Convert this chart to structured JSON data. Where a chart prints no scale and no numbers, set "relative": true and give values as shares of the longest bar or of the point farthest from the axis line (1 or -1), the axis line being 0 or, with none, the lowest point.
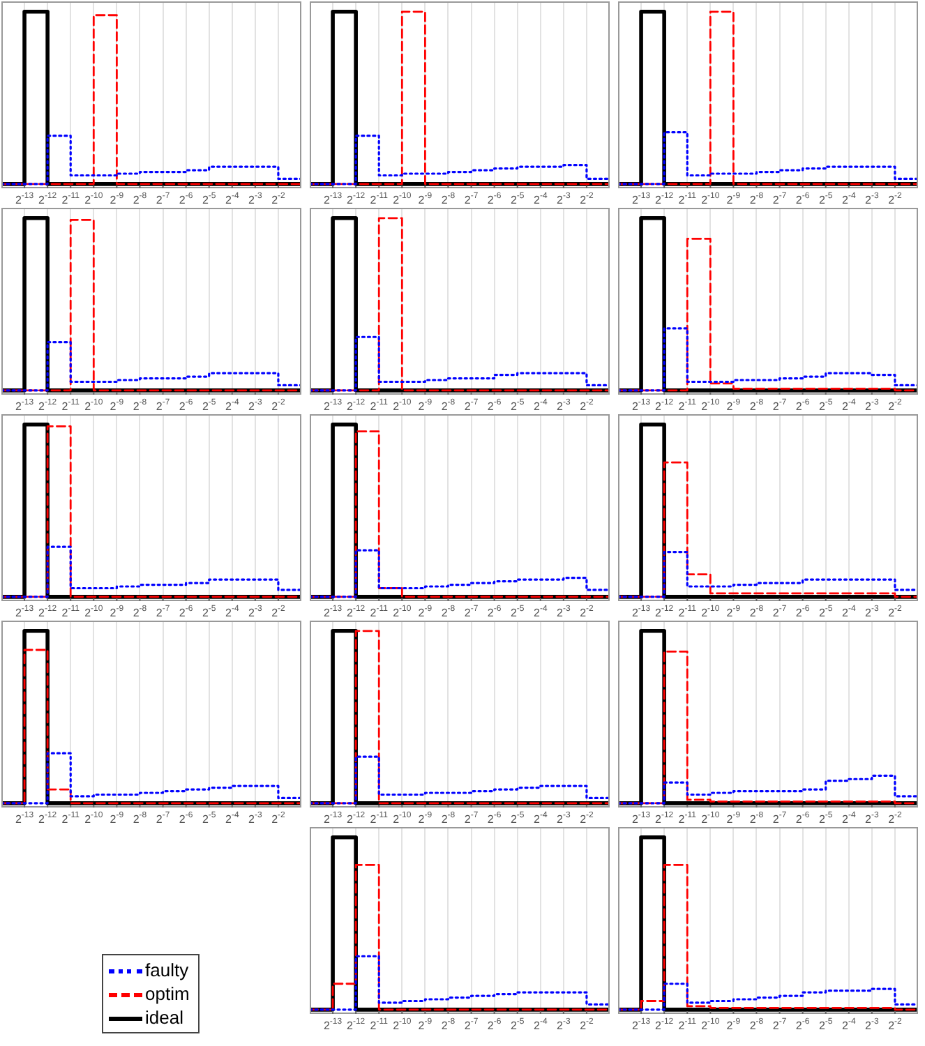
{
  "chart_data": [
    {
      "type": "step",
      "relative": true,
      "log": "x",
      "grid": "x",
      "x": [
        6.103515625e-05,
        0.0001220703125,
        0.000244140625,
        0.00048828125,
        0.0009765625,
        0.001953125,
        0.00390625,
        0.0078125,
        0.015625,
        0.03125,
        0.0625,
        0.125,
        0.25,
        0.5
      ],
      "xlim": [
        6.103515625e-05,
        0.5
      ],
      "xticks": [
        {
          "value": 0.0001220703125,
          "label": "2$^{-13}$"
        },
        {
          "value": 0.000244140625,
          "label": "2$^{-12}$"
        },
        {
          "value": 0.00048828125,
          "label": "2$^{-11}$"
        },
        {
          "value": 0.0009765625,
          "label": "2$^{-10}$"
        },
        {
          "value": 0.001953125,
          "label": "2$^{-9}$"
        },
        {
          "value": 0.00390625,
          "label": "2$^{-8}$"
        },
        {
          "value": 0.0078125,
          "label": "2$^{-7}$"
        },
        {
          "value": 0.015625,
          "label": "2$^{-6}$"
        },
        {
          "value": 0.03125,
          "label": "2$^{-5}$"
        },
        {
          "value": 0.0625,
          "label": "2$^{-4}$"
        },
        {
          "value": 0.125,
          "label": "2$^{-3}$"
        },
        {
          "value": 0.25,
          "label": "2$^{-2}$"
        }
      ],
      "series": [
        {
          "color": "#0000ff",
          "line_style": "dotted",
          "values": [
            0,
            0,
            0.28,
            0.05,
            0.05,
            0.06,
            0.07,
            0.07,
            0.08,
            0.1,
            0.1,
            0.1,
            0.03,
            0.03
          ]
        },
        {
          "color": "#ff0000",
          "line_style": "dashed",
          "values": [
            0,
            0,
            0,
            0,
            0.98,
            0,
            0,
            0,
            0,
            0,
            0,
            0,
            0,
            0
          ]
        },
        {
          "color": "#000000",
          "line_style": "solid",
          "values": [
            0,
            1,
            0,
            0,
            0,
            0,
            0,
            0,
            0,
            0,
            0,
            0,
            0,
            0
          ]
        }
      ]
    },
    {
      "type": "step",
      "relative": true,
      "log": "x",
      "grid": "x",
      "x": [
        6.103515625e-05,
        0.0001220703125,
        0.000244140625,
        0.00048828125,
        0.0009765625,
        0.001953125,
        0.00390625,
        0.0078125,
        0.015625,
        0.03125,
        0.0625,
        0.125,
        0.25,
        0.5
      ],
      "xlim": [
        6.103515625e-05,
        0.5
      ],
      "xticks": [
        {
          "value": 0.0001220703125,
          "label": "2$^{-13}$"
        },
        {
          "value": 0.000244140625,
          "label": "2$^{-12}$"
        },
        {
          "value": 0.00048828125,
          "label": "2$^{-11}$"
        },
        {
          "value": 0.0009765625,
          "label": "2$^{-10}$"
        },
        {
          "value": 0.001953125,
          "label": "2$^{-9}$"
        },
        {
          "value": 0.00390625,
          "label": "2$^{-8}$"
        },
        {
          "value": 0.0078125,
          "label": "2$^{-7}$"
        },
        {
          "value": 0.015625,
          "label": "2$^{-6}$"
        },
        {
          "value": 0.03125,
          "label": "2$^{-5}$"
        },
        {
          "value": 0.0625,
          "label": "2$^{-4}$"
        },
        {
          "value": 0.125,
          "label": "2$^{-3}$"
        },
        {
          "value": 0.25,
          "label": "2$^{-2}$"
        }
      ],
      "series": [
        {
          "color": "#0000ff",
          "line_style": "dotted",
          "values": [
            0,
            0,
            0.28,
            0.05,
            0.06,
            0.06,
            0.07,
            0.08,
            0.09,
            0.1,
            0.1,
            0.11,
            0.03,
            0.03
          ]
        },
        {
          "color": "#ff0000",
          "line_style": "dashed",
          "values": [
            0,
            0,
            0,
            0,
            1,
            0,
            0,
            0,
            0,
            0,
            0,
            0,
            0,
            0
          ]
        },
        {
          "color": "#000000",
          "line_style": "solid",
          "values": [
            0,
            1,
            0,
            0,
            0,
            0,
            0,
            0,
            0,
            0,
            0,
            0,
            0,
            0
          ]
        }
      ]
    },
    {
      "type": "step",
      "relative": true,
      "log": "x",
      "grid": "x",
      "x": [
        6.103515625e-05,
        0.0001220703125,
        0.000244140625,
        0.00048828125,
        0.0009765625,
        0.001953125,
        0.00390625,
        0.0078125,
        0.015625,
        0.03125,
        0.0625,
        0.125,
        0.25,
        0.5
      ],
      "xlim": [
        6.103515625e-05,
        0.5
      ],
      "xticks": [
        {
          "value": 0.0001220703125,
          "label": "2$^{-13}$"
        },
        {
          "value": 0.000244140625,
          "label": "2$^{-12}$"
        },
        {
          "value": 0.00048828125,
          "label": "2$^{-11}$"
        },
        {
          "value": 0.0009765625,
          "label": "2$^{-10}$"
        },
        {
          "value": 0.001953125,
          "label": "2$^{-9}$"
        },
        {
          "value": 0.00390625,
          "label": "2$^{-8}$"
        },
        {
          "value": 0.0078125,
          "label": "2$^{-7}$"
        },
        {
          "value": 0.015625,
          "label": "2$^{-6}$"
        },
        {
          "value": 0.03125,
          "label": "2$^{-5}$"
        },
        {
          "value": 0.0625,
          "label": "2$^{-4}$"
        },
        {
          "value": 0.125,
          "label": "2$^{-3}$"
        },
        {
          "value": 0.25,
          "label": "2$^{-2}$"
        }
      ],
      "series": [
        {
          "color": "#0000ff",
          "line_style": "dotted",
          "values": [
            0,
            0,
            0.3,
            0.05,
            0.06,
            0.06,
            0.07,
            0.08,
            0.09,
            0.1,
            0.1,
            0.1,
            0.03,
            0.03
          ]
        },
        {
          "color": "#ff0000",
          "line_style": "dashed",
          "values": [
            0,
            0,
            0,
            0,
            1,
            0,
            0,
            0,
            0,
            0,
            0,
            0,
            0,
            0
          ]
        },
        {
          "color": "#000000",
          "line_style": "solid",
          "values": [
            0,
            1,
            0,
            0,
            0,
            0,
            0,
            0,
            0,
            0,
            0,
            0,
            0,
            0
          ]
        }
      ]
    },
    {
      "type": "step",
      "relative": true,
      "log": "x",
      "grid": "x",
      "x": [
        6.103515625e-05,
        0.0001220703125,
        0.000244140625,
        0.00048828125,
        0.0009765625,
        0.001953125,
        0.00390625,
        0.0078125,
        0.015625,
        0.03125,
        0.0625,
        0.125,
        0.25,
        0.5
      ],
      "xlim": [
        6.103515625e-05,
        0.5
      ],
      "xticks": [
        {
          "value": 0.0001220703125,
          "label": "2$^{-13}$"
        },
        {
          "value": 0.000244140625,
          "label": "2$^{-12}$"
        },
        {
          "value": 0.00048828125,
          "label": "2$^{-11}$"
        },
        {
          "value": 0.0009765625,
          "label": "2$^{-10}$"
        },
        {
          "value": 0.001953125,
          "label": "2$^{-9}$"
        },
        {
          "value": 0.00390625,
          "label": "2$^{-8}$"
        },
        {
          "value": 0.0078125,
          "label": "2$^{-7}$"
        },
        {
          "value": 0.015625,
          "label": "2$^{-6}$"
        },
        {
          "value": 0.03125,
          "label": "2$^{-5}$"
        },
        {
          "value": 0.0625,
          "label": "2$^{-4}$"
        },
        {
          "value": 0.125,
          "label": "2$^{-3}$"
        },
        {
          "value": 0.25,
          "label": "2$^{-2}$"
        }
      ],
      "series": [
        {
          "color": "#0000ff",
          "line_style": "dotted",
          "values": [
            0,
            0,
            0.28,
            0.05,
            0.05,
            0.06,
            0.07,
            0.07,
            0.08,
            0.1,
            0.1,
            0.1,
            0.03,
            0.03
          ]
        },
        {
          "color": "#ff0000",
          "line_style": "dashed",
          "values": [
            0,
            0,
            0,
            0.99,
            0,
            0,
            0,
            0,
            0,
            0,
            0,
            0,
            0,
            0
          ]
        },
        {
          "color": "#000000",
          "line_style": "solid",
          "values": [
            0,
            1,
            0,
            0,
            0,
            0,
            0,
            0,
            0,
            0,
            0,
            0,
            0,
            0
          ]
        }
      ]
    },
    {
      "type": "step",
      "relative": true,
      "log": "x",
      "grid": "x",
      "x": [
        6.103515625e-05,
        0.0001220703125,
        0.000244140625,
        0.00048828125,
        0.0009765625,
        0.001953125,
        0.00390625,
        0.0078125,
        0.015625,
        0.03125,
        0.0625,
        0.125,
        0.25,
        0.5
      ],
      "xlim": [
        6.103515625e-05,
        0.5
      ],
      "xticks": [
        {
          "value": 0.0001220703125,
          "label": "2$^{-13}$"
        },
        {
          "value": 0.000244140625,
          "label": "2$^{-12}$"
        },
        {
          "value": 0.00048828125,
          "label": "2$^{-11}$"
        },
        {
          "value": 0.0009765625,
          "label": "2$^{-10}$"
        },
        {
          "value": 0.001953125,
          "label": "2$^{-9}$"
        },
        {
          "value": 0.00390625,
          "label": "2$^{-8}$"
        },
        {
          "value": 0.0078125,
          "label": "2$^{-7}$"
        },
        {
          "value": 0.015625,
          "label": "2$^{-6}$"
        },
        {
          "value": 0.03125,
          "label": "2$^{-5}$"
        },
        {
          "value": 0.0625,
          "label": "2$^{-4}$"
        },
        {
          "value": 0.125,
          "label": "2$^{-3}$"
        },
        {
          "value": 0.25,
          "label": "2$^{-2}$"
        }
      ],
      "series": [
        {
          "color": "#0000ff",
          "line_style": "dotted",
          "values": [
            0,
            0,
            0.31,
            0.05,
            0.05,
            0.06,
            0.07,
            0.07,
            0.09,
            0.1,
            0.1,
            0.1,
            0.03,
            0.03
          ]
        },
        {
          "color": "#ff0000",
          "line_style": "dashed",
          "values": [
            0,
            0,
            0,
            1,
            0,
            0,
            0,
            0,
            0,
            0,
            0,
            0,
            0,
            0
          ]
        },
        {
          "color": "#000000",
          "line_style": "solid",
          "values": [
            0,
            1,
            0,
            0,
            0,
            0,
            0,
            0,
            0,
            0,
            0,
            0,
            0,
            0
          ]
        }
      ]
    },
    {
      "type": "step",
      "relative": true,
      "log": "x",
      "grid": "x",
      "x": [
        6.103515625e-05,
        0.0001220703125,
        0.000244140625,
        0.00048828125,
        0.0009765625,
        0.001953125,
        0.00390625,
        0.0078125,
        0.015625,
        0.03125,
        0.0625,
        0.125,
        0.25,
        0.5
      ],
      "xlim": [
        6.103515625e-05,
        0.5
      ],
      "xticks": [
        {
          "value": 0.0001220703125,
          "label": "2$^{-13}$"
        },
        {
          "value": 0.000244140625,
          "label": "2$^{-12}$"
        },
        {
          "value": 0.00048828125,
          "label": "2$^{-11}$"
        },
        {
          "value": 0.0009765625,
          "label": "2$^{-10}$"
        },
        {
          "value": 0.001953125,
          "label": "2$^{-9}$"
        },
        {
          "value": 0.00390625,
          "label": "2$^{-8}$"
        },
        {
          "value": 0.0078125,
          "label": "2$^{-7}$"
        },
        {
          "value": 0.015625,
          "label": "2$^{-6}$"
        },
        {
          "value": 0.03125,
          "label": "2$^{-5}$"
        },
        {
          "value": 0.0625,
          "label": "2$^{-4}$"
        },
        {
          "value": 0.125,
          "label": "2$^{-3}$"
        },
        {
          "value": 0.25,
          "label": "2$^{-2}$"
        }
      ],
      "series": [
        {
          "color": "#0000ff",
          "line_style": "dotted",
          "values": [
            0,
            0,
            0.36,
            0.05,
            0.05,
            0.06,
            0.06,
            0.07,
            0.08,
            0.1,
            0.1,
            0.09,
            0.03,
            0.03
          ]
        },
        {
          "color": "#ff0000",
          "line_style": "dashed",
          "values": [
            0,
            0,
            0,
            0.88,
            0.04,
            0.01,
            0.01,
            0.01,
            0.01,
            0.01,
            0.01,
            0.01,
            0,
            0
          ]
        },
        {
          "color": "#000000",
          "line_style": "solid",
          "values": [
            0,
            1,
            0,
            0,
            0,
            0,
            0,
            0,
            0,
            0,
            0,
            0,
            0,
            0
          ]
        }
      ]
    },
    {
      "type": "step",
      "relative": true,
      "log": "x",
      "grid": "x",
      "x": [
        6.103515625e-05,
        0.0001220703125,
        0.000244140625,
        0.00048828125,
        0.0009765625,
        0.001953125,
        0.00390625,
        0.0078125,
        0.015625,
        0.03125,
        0.0625,
        0.125,
        0.25,
        0.5
      ],
      "xlim": [
        6.103515625e-05,
        0.5
      ],
      "xticks": [
        {
          "value": 0.0001220703125,
          "label": "2$^{-13}$"
        },
        {
          "value": 0.000244140625,
          "label": "2$^{-12}$"
        },
        {
          "value": 0.00048828125,
          "label": "2$^{-11}$"
        },
        {
          "value": 0.0009765625,
          "label": "2$^{-10}$"
        },
        {
          "value": 0.001953125,
          "label": "2$^{-9}$"
        },
        {
          "value": 0.00390625,
          "label": "2$^{-8}$"
        },
        {
          "value": 0.0078125,
          "label": "2$^{-7}$"
        },
        {
          "value": 0.015625,
          "label": "2$^{-6}$"
        },
        {
          "value": 0.03125,
          "label": "2$^{-5}$"
        },
        {
          "value": 0.0625,
          "label": "2$^{-4}$"
        },
        {
          "value": 0.125,
          "label": "2$^{-3}$"
        },
        {
          "value": 0.25,
          "label": "2$^{-2}$"
        }
      ],
      "series": [
        {
          "color": "#0000ff",
          "line_style": "dotted",
          "values": [
            0,
            0,
            0.29,
            0.05,
            0.05,
            0.06,
            0.07,
            0.07,
            0.08,
            0.1,
            0.1,
            0.1,
            0.04,
            0.04
          ]
        },
        {
          "color": "#ff0000",
          "line_style": "dashed",
          "values": [
            0,
            0,
            0.99,
            0,
            0,
            0,
            0,
            0,
            0,
            0,
            0,
            0,
            0,
            0
          ]
        },
        {
          "color": "#000000",
          "line_style": "solid",
          "values": [
            0,
            1,
            0,
            0,
            0,
            0,
            0,
            0,
            0,
            0,
            0,
            0,
            0,
            0
          ]
        }
      ]
    },
    {
      "type": "step",
      "relative": true,
      "log": "x",
      "grid": "x",
      "x": [
        6.103515625e-05,
        0.0001220703125,
        0.000244140625,
        0.00048828125,
        0.0009765625,
        0.001953125,
        0.00390625,
        0.0078125,
        0.015625,
        0.03125,
        0.0625,
        0.125,
        0.25,
        0.5
      ],
      "xlim": [
        6.103515625e-05,
        0.5
      ],
      "xticks": [
        {
          "value": 0.0001220703125,
          "label": "2$^{-13}$"
        },
        {
          "value": 0.000244140625,
          "label": "2$^{-12}$"
        },
        {
          "value": 0.00048828125,
          "label": "2$^{-11}$"
        },
        {
          "value": 0.0009765625,
          "label": "2$^{-10}$"
        },
        {
          "value": 0.001953125,
          "label": "2$^{-9}$"
        },
        {
          "value": 0.00390625,
          "label": "2$^{-8}$"
        },
        {
          "value": 0.0078125,
          "label": "2$^{-7}$"
        },
        {
          "value": 0.015625,
          "label": "2$^{-6}$"
        },
        {
          "value": 0.03125,
          "label": "2$^{-5}$"
        },
        {
          "value": 0.0625,
          "label": "2$^{-4}$"
        },
        {
          "value": 0.125,
          "label": "2$^{-3}$"
        },
        {
          "value": 0.25,
          "label": "2$^{-2}$"
        }
      ],
      "series": [
        {
          "color": "#0000ff",
          "line_style": "dotted",
          "values": [
            0,
            0,
            0.27,
            0.05,
            0.05,
            0.06,
            0.07,
            0.08,
            0.09,
            0.1,
            0.1,
            0.11,
            0.04,
            0.04
          ]
        },
        {
          "color": "#ff0000",
          "line_style": "dashed",
          "values": [
            0,
            0,
            0.96,
            0.05,
            0,
            0,
            0,
            0,
            0,
            0,
            0,
            0,
            0,
            0
          ]
        },
        {
          "color": "#000000",
          "line_style": "solid",
          "values": [
            0,
            1,
            0,
            0,
            0,
            0,
            0,
            0,
            0,
            0,
            0,
            0,
            0,
            0
          ]
        }
      ]
    },
    {
      "type": "step",
      "relative": true,
      "log": "x",
      "grid": "x",
      "x": [
        6.103515625e-05,
        0.0001220703125,
        0.000244140625,
        0.00048828125,
        0.0009765625,
        0.001953125,
        0.00390625,
        0.0078125,
        0.015625,
        0.03125,
        0.0625,
        0.125,
        0.25,
        0.5
      ],
      "xlim": [
        6.103515625e-05,
        0.5
      ],
      "xticks": [
        {
          "value": 0.0001220703125,
          "label": "2$^{-13}$"
        },
        {
          "value": 0.000244140625,
          "label": "2$^{-12}$"
        },
        {
          "value": 0.00048828125,
          "label": "2$^{-11}$"
        },
        {
          "value": 0.0009765625,
          "label": "2$^{-10}$"
        },
        {
          "value": 0.001953125,
          "label": "2$^{-9}$"
        },
        {
          "value": 0.00390625,
          "label": "2$^{-8}$"
        },
        {
          "value": 0.0078125,
          "label": "2$^{-7}$"
        },
        {
          "value": 0.015625,
          "label": "2$^{-6}$"
        },
        {
          "value": 0.03125,
          "label": "2$^{-5}$"
        },
        {
          "value": 0.0625,
          "label": "2$^{-4}$"
        },
        {
          "value": 0.125,
          "label": "2$^{-3}$"
        },
        {
          "value": 0.25,
          "label": "2$^{-2}$"
        }
      ],
      "series": [
        {
          "color": "#0000ff",
          "line_style": "dotted",
          "values": [
            0,
            0,
            0.26,
            0.06,
            0.06,
            0.07,
            0.08,
            0.08,
            0.1,
            0.1,
            0.1,
            0.1,
            0.04,
            0.04
          ]
        },
        {
          "color": "#ff0000",
          "line_style": "dashed",
          "values": [
            0,
            0,
            0.78,
            0.13,
            0.02,
            0.02,
            0.02,
            0.02,
            0.02,
            0.02,
            0.02,
            0.02,
            0,
            0
          ]
        },
        {
          "color": "#000000",
          "line_style": "solid",
          "values": [
            0,
            1,
            0,
            0,
            0,
            0,
            0,
            0,
            0,
            0,
            0,
            0,
            0,
            0
          ]
        }
      ]
    },
    {
      "type": "step",
      "relative": true,
      "log": "x",
      "grid": "x",
      "x": [
        6.103515625e-05,
        0.0001220703125,
        0.000244140625,
        0.00048828125,
        0.0009765625,
        0.001953125,
        0.00390625,
        0.0078125,
        0.015625,
        0.03125,
        0.0625,
        0.125,
        0.25,
        0.5
      ],
      "xlim": [
        6.103515625e-05,
        0.5
      ],
      "xticks": [
        {
          "value": 0.0001220703125,
          "label": "2$^{-13}$"
        },
        {
          "value": 0.000244140625,
          "label": "2$^{-12}$"
        },
        {
          "value": 0.00048828125,
          "label": "2$^{-11}$"
        },
        {
          "value": 0.0009765625,
          "label": "2$^{-10}$"
        },
        {
          "value": 0.001953125,
          "label": "2$^{-9}$"
        },
        {
          "value": 0.00390625,
          "label": "2$^{-8}$"
        },
        {
          "value": 0.0078125,
          "label": "2$^{-7}$"
        },
        {
          "value": 0.015625,
          "label": "2$^{-6}$"
        },
        {
          "value": 0.03125,
          "label": "2$^{-5}$"
        },
        {
          "value": 0.0625,
          "label": "2$^{-4}$"
        },
        {
          "value": 0.125,
          "label": "2$^{-3}$"
        },
        {
          "value": 0.25,
          "label": "2$^{-2}$"
        }
      ],
      "series": [
        {
          "color": "#0000ff",
          "line_style": "dotted",
          "values": [
            0,
            0,
            0.29,
            0.04,
            0.05,
            0.05,
            0.06,
            0.07,
            0.08,
            0.09,
            0.1,
            0.1,
            0.03,
            0.03
          ]
        },
        {
          "color": "#ff0000",
          "line_style": "dashed",
          "values": [
            0,
            0.89,
            0.08,
            0,
            0,
            0,
            0,
            0,
            0,
            0,
            0,
            0,
            0,
            0
          ]
        },
        {
          "color": "#000000",
          "line_style": "solid",
          "values": [
            0,
            1,
            0,
            0,
            0,
            0,
            0,
            0,
            0,
            0,
            0,
            0,
            0,
            0
          ]
        }
      ]
    },
    {
      "type": "step",
      "relative": true,
      "log": "x",
      "grid": "x",
      "x": [
        6.103515625e-05,
        0.0001220703125,
        0.000244140625,
        0.00048828125,
        0.0009765625,
        0.001953125,
        0.00390625,
        0.0078125,
        0.015625,
        0.03125,
        0.0625,
        0.125,
        0.25,
        0.5
      ],
      "xlim": [
        6.103515625e-05,
        0.5
      ],
      "xticks": [
        {
          "value": 0.0001220703125,
          "label": "2$^{-13}$"
        },
        {
          "value": 0.000244140625,
          "label": "2$^{-12}$"
        },
        {
          "value": 0.00048828125,
          "label": "2$^{-11}$"
        },
        {
          "value": 0.0009765625,
          "label": "2$^{-10}$"
        },
        {
          "value": 0.001953125,
          "label": "2$^{-9}$"
        },
        {
          "value": 0.00390625,
          "label": "2$^{-8}$"
        },
        {
          "value": 0.0078125,
          "label": "2$^{-7}$"
        },
        {
          "value": 0.015625,
          "label": "2$^{-6}$"
        },
        {
          "value": 0.03125,
          "label": "2$^{-5}$"
        },
        {
          "value": 0.0625,
          "label": "2$^{-4}$"
        },
        {
          "value": 0.125,
          "label": "2$^{-3}$"
        },
        {
          "value": 0.25,
          "label": "2$^{-2}$"
        }
      ],
      "series": [
        {
          "color": "#0000ff",
          "line_style": "dotted",
          "values": [
            0,
            0,
            0.27,
            0.05,
            0.05,
            0.06,
            0.06,
            0.07,
            0.08,
            0.09,
            0.1,
            0.1,
            0.03,
            0.03
          ]
        },
        {
          "color": "#ff0000",
          "line_style": "dashed",
          "values": [
            0,
            0,
            1,
            0,
            0,
            0,
            0,
            0,
            0,
            0,
            0,
            0,
            0,
            0
          ]
        },
        {
          "color": "#000000",
          "line_style": "solid",
          "values": [
            0,
            1,
            0,
            0,
            0,
            0,
            0,
            0,
            0,
            0,
            0,
            0,
            0,
            0
          ]
        }
      ]
    },
    {
      "type": "step",
      "relative": true,
      "log": "x",
      "grid": "x",
      "x": [
        6.103515625e-05,
        0.0001220703125,
        0.000244140625,
        0.00048828125,
        0.0009765625,
        0.001953125,
        0.00390625,
        0.0078125,
        0.015625,
        0.03125,
        0.0625,
        0.125,
        0.25,
        0.5
      ],
      "xlim": [
        6.103515625e-05,
        0.5
      ],
      "xticks": [
        {
          "value": 0.0001220703125,
          "label": "2$^{-13}$"
        },
        {
          "value": 0.000244140625,
          "label": "2$^{-12}$"
        },
        {
          "value": 0.00048828125,
          "label": "2$^{-11}$"
        },
        {
          "value": 0.0009765625,
          "label": "2$^{-10}$"
        },
        {
          "value": 0.001953125,
          "label": "2$^{-9}$"
        },
        {
          "value": 0.00390625,
          "label": "2$^{-8}$"
        },
        {
          "value": 0.0078125,
          "label": "2$^{-7}$"
        },
        {
          "value": 0.015625,
          "label": "2$^{-6}$"
        },
        {
          "value": 0.03125,
          "label": "2$^{-5}$"
        },
        {
          "value": 0.0625,
          "label": "2$^{-4}$"
        },
        {
          "value": 0.125,
          "label": "2$^{-3}$"
        },
        {
          "value": 0.25,
          "label": "2$^{-2}$"
        }
      ],
      "series": [
        {
          "color": "#0000ff",
          "line_style": "dotted",
          "values": [
            0,
            0,
            0.12,
            0.05,
            0.06,
            0.07,
            0.07,
            0.07,
            0.08,
            0.13,
            0.14,
            0.16,
            0.04,
            0.04
          ]
        },
        {
          "color": "#ff0000",
          "line_style": "dashed",
          "values": [
            0,
            0,
            0.88,
            0.02,
            0.01,
            0.01,
            0.01,
            0.01,
            0.01,
            0.01,
            0.01,
            0.01,
            0,
            0
          ]
        },
        {
          "color": "#000000",
          "line_style": "solid",
          "values": [
            0,
            1,
            0,
            0,
            0,
            0,
            0,
            0,
            0,
            0,
            0,
            0,
            0,
            0
          ]
        }
      ]
    },
    {
      "type": "step",
      "relative": true,
      "log": "x",
      "grid": "x",
      "legend": "left",
      "x": [
        6.103515625e-05,
        0.0001220703125,
        0.000244140625,
        0.00048828125,
        0.0009765625,
        0.001953125,
        0.00390625,
        0.0078125,
        0.015625,
        0.03125,
        0.0625,
        0.125,
        0.25,
        0.5
      ],
      "xlim": [
        6.103515625e-05,
        0.5
      ],
      "xticks": [
        {
          "value": 0.0001220703125,
          "label": "2$^{-13}$"
        },
        {
          "value": 0.000244140625,
          "label": "2$^{-12}$"
        },
        {
          "value": 0.00048828125,
          "label": "2$^{-11}$"
        },
        {
          "value": 0.0009765625,
          "label": "2$^{-10}$"
        },
        {
          "value": 0.001953125,
          "label": "2$^{-9}$"
        },
        {
          "value": 0.00390625,
          "label": "2$^{-8}$"
        },
        {
          "value": 0.0078125,
          "label": "2$^{-7}$"
        },
        {
          "value": 0.015625,
          "label": "2$^{-6}$"
        },
        {
          "value": 0.03125,
          "label": "2$^{-5}$"
        },
        {
          "value": 0.0625,
          "label": "2$^{-4}$"
        },
        {
          "value": 0.125,
          "label": "2$^{-3}$"
        },
        {
          "value": 0.25,
          "label": "2$^{-2}$"
        }
      ],
      "series": [
        {
          "name": "faulty",
          "color": "#0000ff",
          "line_style": "dotted",
          "values": [
            0,
            0,
            0.31,
            0.04,
            0.05,
            0.06,
            0.07,
            0.08,
            0.09,
            0.1,
            0.1,
            0.1,
            0.03,
            0.03
          ]
        },
        {
          "name": "optim",
          "color": "#ff0000",
          "line_style": "dashed",
          "values": [
            0,
            0.15,
            0.84,
            0,
            0,
            0,
            0,
            0,
            0,
            0,
            0,
            0,
            0,
            0
          ]
        },
        {
          "name": "ideal",
          "color": "#000000",
          "line_style": "solid",
          "values": [
            0,
            1,
            0,
            0,
            0,
            0,
            0,
            0,
            0,
            0,
            0,
            0,
            0,
            0
          ]
        }
      ]
    },
    {
      "type": "step",
      "relative": true,
      "log": "x",
      "grid": "x",
      "x": [
        6.103515625e-05,
        0.0001220703125,
        0.000244140625,
        0.00048828125,
        0.0009765625,
        0.001953125,
        0.00390625,
        0.0078125,
        0.015625,
        0.03125,
        0.0625,
        0.125,
        0.25,
        0.5
      ],
      "xlim": [
        6.103515625e-05,
        0.5
      ],
      "xticks": [
        {
          "value": 0.0001220703125,
          "label": "2$^{-13}$"
        },
        {
          "value": 0.000244140625,
          "label": "2$^{-12}$"
        },
        {
          "value": 0.00048828125,
          "label": "2$^{-11}$"
        },
        {
          "value": 0.0009765625,
          "label": "2$^{-10}$"
        },
        {
          "value": 0.001953125,
          "label": "2$^{-9}$"
        },
        {
          "value": 0.00390625,
          "label": "2$^{-8}$"
        },
        {
          "value": 0.0078125,
          "label": "2$^{-7}$"
        },
        {
          "value": 0.015625,
          "label": "2$^{-6}$"
        },
        {
          "value": 0.03125,
          "label": "2$^{-5}$"
        },
        {
          "value": 0.0625,
          "label": "2$^{-4}$"
        },
        {
          "value": 0.125,
          "label": "2$^{-3}$"
        },
        {
          "value": 0.25,
          "label": "2$^{-2}$"
        }
      ],
      "series": [
        {
          "color": "#0000ff",
          "line_style": "dotted",
          "values": [
            0,
            0,
            0.15,
            0.04,
            0.05,
            0.06,
            0.07,
            0.08,
            0.1,
            0.11,
            0.11,
            0.12,
            0.03,
            0.03
          ]
        },
        {
          "color": "#ff0000",
          "line_style": "dashed",
          "values": [
            0,
            0.05,
            0.84,
            0.02,
            0.01,
            0.01,
            0.01,
            0.01,
            0.01,
            0.01,
            0.01,
            0.01,
            0,
            0
          ]
        },
        {
          "color": "#000000",
          "line_style": "solid",
          "values": [
            0,
            1,
            0,
            0,
            0,
            0,
            0,
            0,
            0,
            0,
            0,
            0,
            0,
            0
          ]
        }
      ]
    }
  ]
}
